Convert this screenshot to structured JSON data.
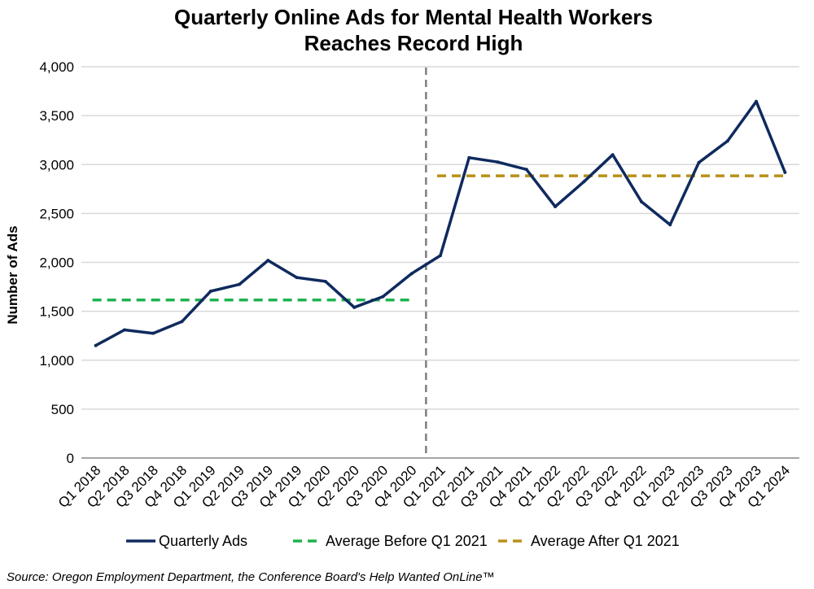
{
  "chart_data": {
    "type": "line",
    "title_lines": [
      "Quarterly Online Ads for Mental Health Workers",
      "Reaches Record High"
    ],
    "xlabel": "",
    "ylabel": "Number of Ads",
    "ylim": [
      0,
      4000
    ],
    "yticks": [
      0,
      500,
      1000,
      1500,
      2000,
      2500,
      3000,
      3500,
      4000
    ],
    "ytick_labels": [
      "0",
      "500",
      "1,000",
      "1,500",
      "2,000",
      "2,500",
      "3,000",
      "3,500",
      "4,000"
    ],
    "grid": true,
    "legend_position": "bottom",
    "categories": [
      "Q1 2018",
      "Q2 2018",
      "Q3 2018",
      "Q4 2018",
      "Q1 2019",
      "Q2 2019",
      "Q3 2019",
      "Q4 2019",
      "Q1 2020",
      "Q2 2020",
      "Q3 2020",
      "Q4 2020",
      "Q1 2021",
      "Q2 2021",
      "Q3 2021",
      "Q4 2021",
      "Q1 2022",
      "Q2 2022",
      "Q3 2022",
      "Q4 2022",
      "Q1 2023",
      "Q2 2023",
      "Q3 2023",
      "Q4 2023",
      "Q1 2024"
    ],
    "series": [
      {
        "name": "Quarterly Ads",
        "color": "#0f2a5e",
        "style": "solid",
        "values": [
          1150,
          1310,
          1275,
          1395,
          1705,
          1775,
          2020,
          1845,
          1805,
          1540,
          1650,
          1885,
          2070,
          3070,
          3025,
          2950,
          2570,
          2825,
          3100,
          2620,
          2385,
          3020,
          3240,
          3645,
          2920
        ]
      },
      {
        "name": "Average Before Q1 2021",
        "color": "#1db34f",
        "style": "dashed",
        "value": 1615,
        "x_range": [
          "Q1 2018",
          "Q4 2020"
        ]
      },
      {
        "name": "Average After Q1 2021",
        "color": "#b8901a",
        "style": "dashed",
        "value": 2885,
        "x_range": [
          "Q1 2021",
          "Q1 2024"
        ]
      }
    ],
    "reference_line": {
      "between": [
        "Q4 2020",
        "Q1 2021"
      ],
      "color": "#7f7f7f",
      "style": "dashed"
    },
    "source": "Source: Oregon Employment Department, the Conference Board's Help Wanted OnLine™"
  }
}
